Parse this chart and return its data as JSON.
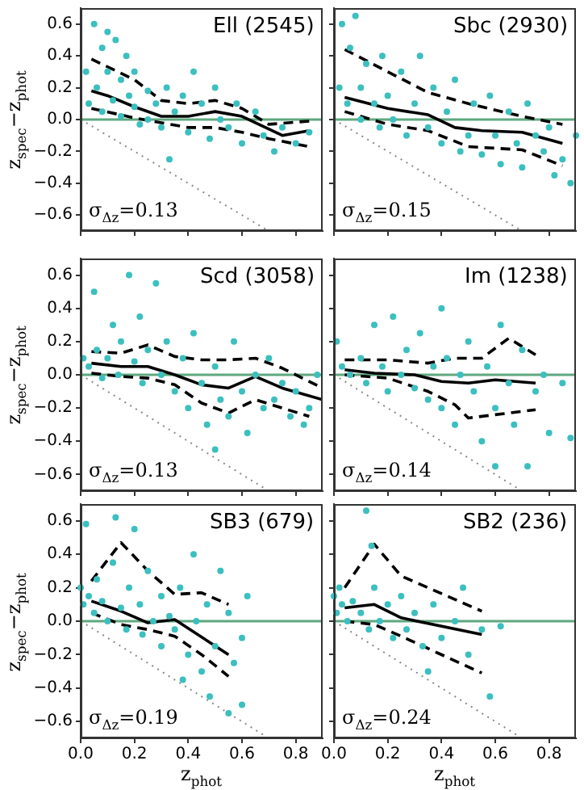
{
  "chart_data": [
    {
      "type": "scatter",
      "title": "Ell (2545)",
      "ylabel": "z$_{spec}$−z$_{phot}$",
      "annotations": [
        "σ$_{Δz}$=0.13"
      ],
      "xlim": [
        0,
        0.9
      ],
      "ylim": [
        -0.7,
        0.7
      ],
      "xticks": [
        0,
        0.2,
        0.4,
        0.6,
        0.8
      ],
      "yticks": [
        {
          "value": -0.6,
          "label": "−0.6"
        },
        {
          "value": -0.4,
          "label": "−0.4"
        },
        {
          "value": -0.2,
          "label": "−0.2"
        },
        {
          "value": 0,
          "label": "0.0"
        },
        {
          "value": 0.2,
          "label": "0.2"
        },
        {
          "value": 0.4,
          "label": "0.4"
        },
        {
          "value": 0.6,
          "label": "0.6"
        }
      ],
      "tick_labels": "y",
      "grid": false,
      "ref_lines": [
        {
          "axis": "y",
          "value": 0,
          "color": "#5fa87f"
        }
      ],
      "series": [
        {
          "type": "scatter",
          "color": "#3cbfbf",
          "marker": "circle",
          "x": [
            0.02,
            0.03,
            0.05,
            0.06,
            0.08,
            0.08,
            0.1,
            0.1,
            0.12,
            0.13,
            0.15,
            0.15,
            0.17,
            0.18,
            0.2,
            0.2,
            0.22,
            0.25,
            0.25,
            0.28,
            0.3,
            0.32,
            0.33,
            0.35,
            0.38,
            0.4,
            0.42,
            0.45,
            0.48,
            0.5,
            0.52,
            0.55,
            0.58,
            0.6,
            0.65,
            0.68,
            0.72,
            0.75,
            0.8,
            0.85
          ],
          "values": [
            0.3,
            0.1,
            0.6,
            0.2,
            0.45,
            0.05,
            0.55,
            0.3,
            0.12,
            0.5,
            0.25,
            0.02,
            0.4,
            0.15,
            0.08,
            0.3,
            -0.03,
            0.18,
            0,
            0.1,
            -0.05,
            0.2,
            -0.25,
            0.05,
            0.15,
            -0.08,
            0.3,
            0.1,
            -0.12,
            0.2,
            0,
            -0.05,
            0.1,
            -0.15,
            0.05,
            -0.1,
            -0.2,
            -0.05,
            -0.15,
            -0.08
          ]
        },
        {
          "type": "line",
          "color": "#000000",
          "line_style": "solid",
          "marker": "none",
          "x": [
            0.04,
            0.1,
            0.2,
            0.3,
            0.4,
            0.5,
            0.6,
            0.75,
            0.85
          ],
          "values": [
            0.18,
            0.15,
            0.08,
            0.02,
            0.02,
            0.05,
            0.02,
            -0.1,
            -0.07
          ]
        },
        {
          "type": "line",
          "color": "#000000",
          "line_style": "dashed",
          "marker": "none",
          "x": [
            0.04,
            0.2,
            0.3,
            0.4,
            0.5,
            0.6,
            0.7,
            0.85
          ],
          "values": [
            0.38,
            0.25,
            0.12,
            0.1,
            0.12,
            0.07,
            -0.03,
            -0.01
          ]
        },
        {
          "type": "line",
          "color": "#000000",
          "line_style": "dashed",
          "marker": "none",
          "x": [
            0.04,
            0.2,
            0.3,
            0.4,
            0.5,
            0.6,
            0.7,
            0.85
          ],
          "values": [
            0.07,
            0.01,
            -0.02,
            -0.05,
            -0.05,
            -0.08,
            -0.12,
            -0.17
          ]
        },
        {
          "type": "line",
          "color": "#888888",
          "line_style": "dotted",
          "marker": "none",
          "x": [
            0,
            0.7
          ],
          "values": [
            0,
            -0.7
          ]
        }
      ]
    },
    {
      "type": "scatter",
      "title": "Sbc (2930)",
      "annotations": [
        "σ$_{Δz}$=0.15"
      ],
      "xlim": [
        0,
        0.9
      ],
      "ylim": [
        -0.7,
        0.7
      ],
      "xticks": [
        0,
        0.2,
        0.4,
        0.6,
        0.8
      ],
      "yticks": [
        -0.6,
        -0.4,
        -0.2,
        0,
        0.2,
        0.4,
        0.6
      ],
      "tick_labels": false,
      "grid": false,
      "ref_lines": [
        {
          "axis": "y",
          "value": 0,
          "color": "#5fa87f"
        }
      ],
      "series": [
        {
          "type": "scatter",
          "color": "#3cbfbf",
          "marker": "circle",
          "x": [
            0.02,
            0.03,
            0.05,
            0.06,
            0.08,
            0.1,
            0.1,
            0.12,
            0.15,
            0.17,
            0.18,
            0.2,
            0.22,
            0.25,
            0.27,
            0.3,
            0.32,
            0.35,
            0.37,
            0.4,
            0.42,
            0.45,
            0.47,
            0.5,
            0.52,
            0.55,
            0.58,
            0.6,
            0.62,
            0.65,
            0.68,
            0.7,
            0.72,
            0.75,
            0.78,
            0.8,
            0.82,
            0.85,
            0.88,
            0.9
          ],
          "values": [
            0.2,
            0.6,
            0.1,
            0.45,
            0.65,
            0.2,
            0,
            0.35,
            0.1,
            -0.05,
            0.4,
            0.15,
            0,
            0.3,
            -0.1,
            0.1,
            0.4,
            -0.05,
            0.2,
            -0.15,
            0.05,
            0.25,
            -0.2,
            -0.1,
            0.1,
            -0.22,
            0.15,
            -0.1,
            -0.28,
            0.05,
            -0.15,
            -0.3,
            0.1,
            -0.1,
            -0.2,
            -0.05,
            -0.35,
            -0.25,
            -0.4,
            -0.1
          ]
        },
        {
          "type": "line",
          "color": "#000000",
          "line_style": "solid",
          "marker": "none",
          "x": [
            0.04,
            0.2,
            0.35,
            0.45,
            0.55,
            0.7,
            0.85
          ],
          "values": [
            0.14,
            0.07,
            0.03,
            -0.05,
            -0.07,
            -0.08,
            -0.15
          ]
        },
        {
          "type": "line",
          "color": "#000000",
          "line_style": "dashed",
          "marker": "none",
          "x": [
            0.04,
            0.2,
            0.35,
            0.5,
            0.7,
            0.85
          ],
          "values": [
            0.44,
            0.3,
            0.17,
            0.1,
            0.02,
            -0.03
          ]
        },
        {
          "type": "line",
          "color": "#000000",
          "line_style": "dashed",
          "marker": "none",
          "x": [
            0.04,
            0.2,
            0.35,
            0.5,
            0.7,
            0.85
          ],
          "values": [
            0.05,
            -0.03,
            -0.07,
            -0.17,
            -0.19,
            -0.29
          ]
        },
        {
          "type": "line",
          "color": "#888888",
          "line_style": "dotted",
          "marker": "none",
          "x": [
            0,
            0.7
          ],
          "values": [
            0,
            -0.7
          ]
        }
      ]
    },
    {
      "type": "scatter",
      "title": "Scd (3058)",
      "ylabel": "z$_{spec}$−z$_{phot}$",
      "annotations": [
        "σ$_{Δz}$=0.13"
      ],
      "xlim": [
        0,
        0.9
      ],
      "ylim": [
        -0.7,
        0.7
      ],
      "xticks": [
        0,
        0.2,
        0.4,
        0.6,
        0.8
      ],
      "yticks": [
        {
          "value": -0.6,
          "label": "−0.6"
        },
        {
          "value": -0.4,
          "label": "−0.4"
        },
        {
          "value": -0.2,
          "label": "−0.2"
        },
        {
          "value": 0,
          "label": "0.0"
        },
        {
          "value": 0.2,
          "label": "0.2"
        },
        {
          "value": 0.4,
          "label": "0.4"
        },
        {
          "value": 0.6,
          "label": "0.6"
        }
      ],
      "tick_labels": "y",
      "grid": false,
      "ref_lines": [
        {
          "axis": "y",
          "value": 0,
          "color": "#5fa87f"
        }
      ],
      "series": [
        {
          "type": "scatter",
          "color": "#3cbfbf",
          "marker": "circle",
          "x": [
            0.01,
            0.03,
            0.05,
            0.06,
            0.08,
            0.1,
            0.12,
            0.14,
            0.15,
            0.18,
            0.2,
            0.22,
            0.23,
            0.25,
            0.28,
            0.3,
            0.32,
            0.35,
            0.38,
            0.4,
            0.42,
            0.45,
            0.47,
            0.5,
            0.52,
            0.55,
            0.57,
            0.6,
            0.62,
            0.65,
            0.68,
            0.7,
            0.72,
            0.75,
            0.78,
            0.8,
            0.83,
            0.85,
            0.88,
            0.5
          ],
          "values": [
            0.1,
            0.05,
            0.5,
            0.15,
            -0.02,
            0.1,
            0.3,
            0,
            0.2,
            0.6,
            0.08,
            0.35,
            -0.05,
            0.15,
            0.55,
            0,
            0.2,
            -0.1,
            0.1,
            -0.2,
            0.25,
            -0.05,
            -0.3,
            0.05,
            -0.15,
            -0.25,
            0.2,
            -0.1,
            -0.35,
            0,
            -0.2,
            0.1,
            -0.15,
            -0.05,
            -0.25,
            -0.1,
            -0.3,
            -0.2,
            0,
            -0.45
          ]
        },
        {
          "type": "line",
          "color": "#000000",
          "line_style": "solid",
          "marker": "none",
          "x": [
            0.04,
            0.15,
            0.25,
            0.35,
            0.45,
            0.55,
            0.65,
            0.75,
            0.9
          ],
          "values": [
            0.07,
            0.05,
            0.05,
            0,
            -0.06,
            -0.08,
            -0.01,
            -0.08,
            -0.15
          ]
        },
        {
          "type": "line",
          "color": "#000000",
          "line_style": "dashed",
          "marker": "none",
          "x": [
            0.04,
            0.15,
            0.25,
            0.35,
            0.45,
            0.55,
            0.65,
            0.75,
            0.9
          ],
          "values": [
            0.14,
            0.13,
            0.18,
            0.11,
            0.09,
            0.09,
            0.1,
            0.04,
            -0.08
          ]
        },
        {
          "type": "line",
          "color": "#000000",
          "line_style": "dashed",
          "marker": "none",
          "x": [
            0.04,
            0.15,
            0.25,
            0.35,
            0.45,
            0.55,
            0.65,
            0.75,
            0.85
          ],
          "values": [
            0.01,
            -0.01,
            -0.02,
            -0.06,
            -0.17,
            -0.23,
            -0.15,
            -0.2,
            -0.25
          ]
        },
        {
          "type": "line",
          "color": "#888888",
          "line_style": "dotted",
          "marker": "none",
          "x": [
            0,
            0.7
          ],
          "values": [
            0,
            -0.7
          ]
        }
      ]
    },
    {
      "type": "scatter",
      "title": "Im (1238)",
      "annotations": [
        "σ$_{Δz}$=0.14"
      ],
      "xlim": [
        0,
        0.9
      ],
      "ylim": [
        -0.7,
        0.7
      ],
      "xticks": [
        0,
        0.2,
        0.4,
        0.6,
        0.8
      ],
      "yticks": [
        -0.6,
        -0.4,
        -0.2,
        0,
        0.2,
        0.4,
        0.6
      ],
      "tick_labels": false,
      "grid": false,
      "ref_lines": [
        {
          "axis": "y",
          "value": 0,
          "color": "#5fa87f"
        }
      ],
      "series": [
        {
          "type": "scatter",
          "color": "#3cbfbf",
          "marker": "circle",
          "x": [
            0.01,
            0.03,
            0.06,
            0.1,
            0.12,
            0.15,
            0.18,
            0.2,
            0.22,
            0.25,
            0.27,
            0.3,
            0.32,
            0.35,
            0.37,
            0.4,
            0.4,
            0.42,
            0.45,
            0.47,
            0.5,
            0.52,
            0.55,
            0.57,
            0.6,
            0.62,
            0.65,
            0.67,
            0.7,
            0.72,
            0.75,
            0.78,
            0.8,
            0.85,
            0.88,
            0.6
          ],
          "values": [
            0.2,
            0.05,
            0,
            0.1,
            -0.05,
            0.3,
            0.05,
            -0.1,
            0.35,
            0,
            0.15,
            -0.08,
            0.25,
            -0.15,
            0.05,
            0.4,
            -0.2,
            0.1,
            -0.3,
            0,
            0.2,
            -0.1,
            -0.4,
            0.05,
            -0.2,
            0.3,
            -0.05,
            -0.3,
            0.15,
            -0.55,
            -0.1,
            0,
            -0.35,
            -0.05,
            -0.38,
            -0.55
          ]
        },
        {
          "type": "line",
          "color": "#000000",
          "line_style": "solid",
          "marker": "none",
          "x": [
            0.04,
            0.15,
            0.3,
            0.4,
            0.5,
            0.6,
            0.75
          ],
          "values": [
            0.03,
            0.01,
            0,
            -0.04,
            -0.05,
            -0.03,
            -0.05
          ]
        },
        {
          "type": "line",
          "color": "#000000",
          "line_style": "dashed",
          "marker": "none",
          "x": [
            0.04,
            0.2,
            0.35,
            0.45,
            0.55,
            0.65,
            0.75
          ],
          "values": [
            0.09,
            0.09,
            0.07,
            0.1,
            0.1,
            0.22,
            0.12
          ]
        },
        {
          "type": "line",
          "color": "#000000",
          "line_style": "dashed",
          "marker": "none",
          "x": [
            0.04,
            0.2,
            0.35,
            0.45,
            0.5,
            0.6,
            0.75
          ],
          "values": [
            0,
            -0.02,
            -0.1,
            -0.18,
            -0.26,
            -0.24,
            -0.21
          ]
        },
        {
          "type": "line",
          "color": "#888888",
          "line_style": "dotted",
          "marker": "none",
          "x": [
            0,
            0.7
          ],
          "values": [
            0,
            -0.7
          ]
        }
      ]
    },
    {
      "type": "scatter",
      "title": "SB3 (679)",
      "ylabel": "z$_{spec}$−z$_{phot}$",
      "xlabel": "z$_{phot}$",
      "annotations": [
        "σ$_{Δz}$=0.19"
      ],
      "xlim": [
        0,
        0.9
      ],
      "ylim": [
        -0.7,
        0.7
      ],
      "xticks": [
        {
          "value": 0,
          "label": "0.0"
        },
        {
          "value": 0.2,
          "label": "0.2"
        },
        {
          "value": 0.4,
          "label": "0.4"
        },
        {
          "value": 0.6,
          "label": "0.6"
        },
        {
          "value": 0.8,
          "label": "0.8"
        }
      ],
      "yticks": [
        {
          "value": -0.6,
          "label": "−0.6"
        },
        {
          "value": -0.4,
          "label": "−0.4"
        },
        {
          "value": -0.2,
          "label": "−0.2"
        },
        {
          "value": 0,
          "label": "0.0"
        },
        {
          "value": 0.2,
          "label": "0.2"
        },
        {
          "value": 0.4,
          "label": "0.4"
        },
        {
          "value": 0.6,
          "label": "0.6"
        }
      ],
      "grid": false,
      "ref_lines": [
        {
          "axis": "y",
          "value": 0,
          "color": "#5fa87f"
        }
      ],
      "series": [
        {
          "type": "scatter",
          "color": "#3cbfbf",
          "marker": "circle",
          "x": [
            0,
            0.01,
            0.02,
            0.03,
            0.05,
            0.06,
            0.08,
            0.1,
            0.12,
            0.13,
            0.15,
            0.17,
            0.18,
            0.2,
            0.22,
            0.23,
            0.25,
            0.27,
            0.3,
            0.3,
            0.33,
            0.35,
            0.37,
            0.4,
            0.42,
            0.43,
            0.45,
            0.47,
            0.5,
            0.52,
            0.55,
            0.57,
            0.6,
            0.6,
            0.62,
            0.55,
            0.48,
            0.38
          ],
          "values": [
            0.2,
            0.1,
            0.58,
            0.15,
            0.05,
            0.25,
            0.12,
            0,
            0.35,
            0.62,
            0.08,
            -0.05,
            0.2,
            0.55,
            0.1,
            -0.08,
            0.3,
            0,
            0.15,
            -0.15,
            0.03,
            -0.05,
            0.2,
            -0.2,
            0.4,
            0,
            -0.3,
            0.1,
            -0.15,
            0.3,
            0.05,
            -0.25,
            -0.1,
            -0.5,
            0.15,
            -0.55,
            -0.45,
            -0.35
          ]
        },
        {
          "type": "line",
          "color": "#000000",
          "line_style": "solid",
          "marker": "none",
          "x": [
            0.04,
            0.15,
            0.25,
            0.35,
            0.55
          ],
          "values": [
            0.12,
            0.06,
            -0.01,
            0.01,
            -0.2
          ]
        },
        {
          "type": "line",
          "color": "#000000",
          "line_style": "dashed",
          "marker": "none",
          "x": [
            0.04,
            0.15,
            0.25,
            0.35,
            0.45,
            0.55
          ],
          "values": [
            0.24,
            0.47,
            0.3,
            0.16,
            0.17,
            0.1
          ]
        },
        {
          "type": "line",
          "color": "#000000",
          "line_style": "dashed",
          "marker": "none",
          "x": [
            0.04,
            0.15,
            0.25,
            0.35,
            0.45,
            0.55
          ],
          "values": [
            0.05,
            -0.02,
            -0.05,
            -0.09,
            -0.2,
            -0.33
          ]
        },
        {
          "type": "line",
          "color": "#888888",
          "line_style": "dotted",
          "marker": "none",
          "x": [
            0,
            0.7
          ],
          "values": [
            0,
            -0.7
          ]
        }
      ]
    },
    {
      "type": "scatter",
      "title": "SB2 (236)",
      "xlabel": "z$_{phot}$",
      "annotations": [
        "σ$_{Δz}$=0.24"
      ],
      "xlim": [
        0,
        0.9
      ],
      "ylim": [
        -0.7,
        0.7
      ],
      "xticks": [
        {
          "value": 0,
          "label": "0.0"
        },
        {
          "value": 0.2,
          "label": "0.2"
        },
        {
          "value": 0.4,
          "label": "0.4"
        },
        {
          "value": 0.6,
          "label": "0.6"
        },
        {
          "value": 0.8,
          "label": "0.8"
        }
      ],
      "yticks": [
        -0.6,
        -0.4,
        -0.2,
        0,
        0.2,
        0.4,
        0.6
      ],
      "tick_labels": "x",
      "grid": false,
      "ref_lines": [
        {
          "axis": "y",
          "value": 0,
          "color": "#5fa87f"
        }
      ],
      "series": [
        {
          "type": "scatter",
          "color": "#3cbfbf",
          "marker": "circle",
          "x": [
            0,
            0.01,
            0.02,
            0.03,
            0.05,
            0.07,
            0.1,
            0.12,
            0.13,
            0.14,
            0.15,
            0.17,
            0.2,
            0.22,
            0.25,
            0.27,
            0.3,
            0.33,
            0.37,
            0.4,
            0.45,
            0.48,
            0.5,
            0.55,
            0.58,
            0.62,
            0.35
          ],
          "values": [
            0.15,
            0.05,
            0.2,
            0.1,
            0,
            0.12,
            0.05,
            0.66,
            -0.05,
            0.45,
            0.2,
            0,
            0.1,
            -0.1,
            0.15,
            -0.05,
            0.05,
            -0.15,
            0.1,
            -0.1,
            0,
            0.2,
            -0.2,
            -0.05,
            -0.45,
            -0.03,
            -0.3
          ]
        },
        {
          "type": "line",
          "color": "#000000",
          "line_style": "solid",
          "marker": "none",
          "x": [
            0.04,
            0.15,
            0.25,
            0.55
          ],
          "values": [
            0.08,
            0.1,
            0.02,
            -0.08
          ]
        },
        {
          "type": "line",
          "color": "#000000",
          "line_style": "dashed",
          "marker": "none",
          "x": [
            0.04,
            0.15,
            0.25,
            0.55
          ],
          "values": [
            0.2,
            0.46,
            0.27,
            0.06
          ]
        },
        {
          "type": "line",
          "color": "#000000",
          "line_style": "dashed",
          "marker": "none",
          "x": [
            0.04,
            0.15,
            0.25,
            0.55
          ],
          "values": [
            0,
            -0.02,
            -0.09,
            -0.31
          ]
        },
        {
          "type": "line",
          "color": "#888888",
          "line_style": "dotted",
          "marker": "none",
          "x": [
            0,
            0.7
          ],
          "values": [
            0,
            -0.7
          ]
        }
      ]
    }
  ]
}
